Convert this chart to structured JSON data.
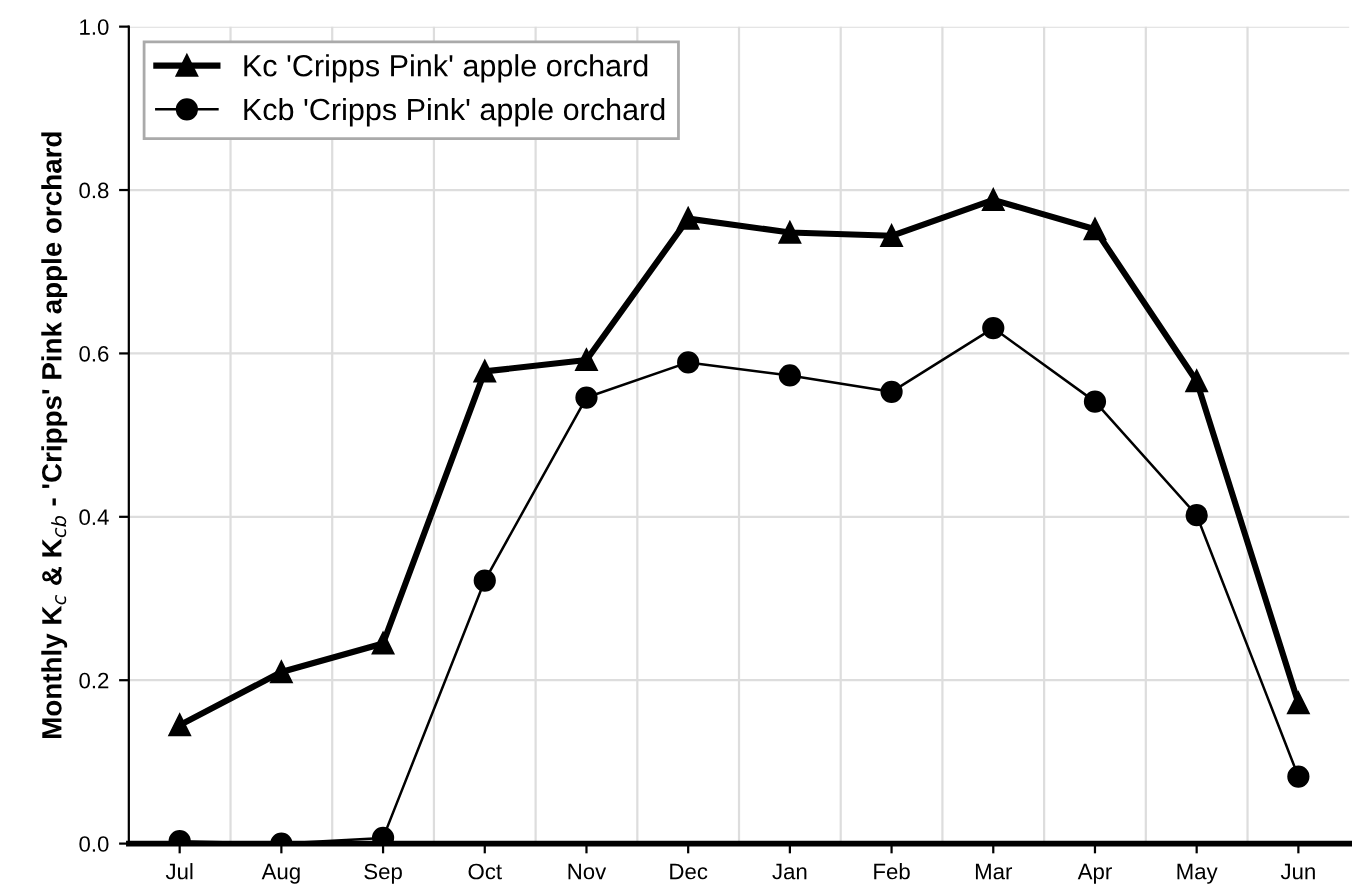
{
  "chart_data": {
    "type": "line",
    "ylabel": "Monthly K$_{c}$ & K$_{cb}$ - 'Cripps' Pink apple orchard",
    "categories": [
      "Jul",
      "Aug",
      "Sep",
      "Oct",
      "Nov",
      "Dec",
      "Jan",
      "Feb",
      "Mar",
      "Apr",
      "May",
      "Jun"
    ],
    "series": [
      {
        "name": "Kc 'Cripps Pink' apple orchard",
        "color": "#000000",
        "marker": "triangle",
        "values": [
          0.145,
          0.21,
          0.245,
          0.578,
          0.592,
          0.765,
          0.748,
          0.744,
          0.788,
          0.752,
          0.566,
          0.172
        ]
      },
      {
        "name": "Kcb 'Cripps Pink' apple orchard",
        "color": "#000000",
        "marker": "circle",
        "values": [
          0.003,
          0.0,
          0.007,
          0.322,
          0.546,
          0.589,
          0.573,
          0.553,
          0.631,
          0.541,
          0.402,
          0.082
        ]
      }
    ],
    "ylim": [
      0,
      1.0
    ],
    "yticks": [
      {
        "value": 0,
        "label": "0.0"
      },
      {
        "value": 0.2,
        "label": "0.2"
      },
      {
        "value": 0.4,
        "label": "0.4"
      },
      {
        "value": 0.6,
        "label": "0.6"
      },
      {
        "value": 0.8,
        "label": "0.8"
      },
      {
        "value": 1.0,
        "label": "1.0"
      }
    ],
    "grid": true,
    "legend": "top left",
    "line_style": "solid"
  }
}
